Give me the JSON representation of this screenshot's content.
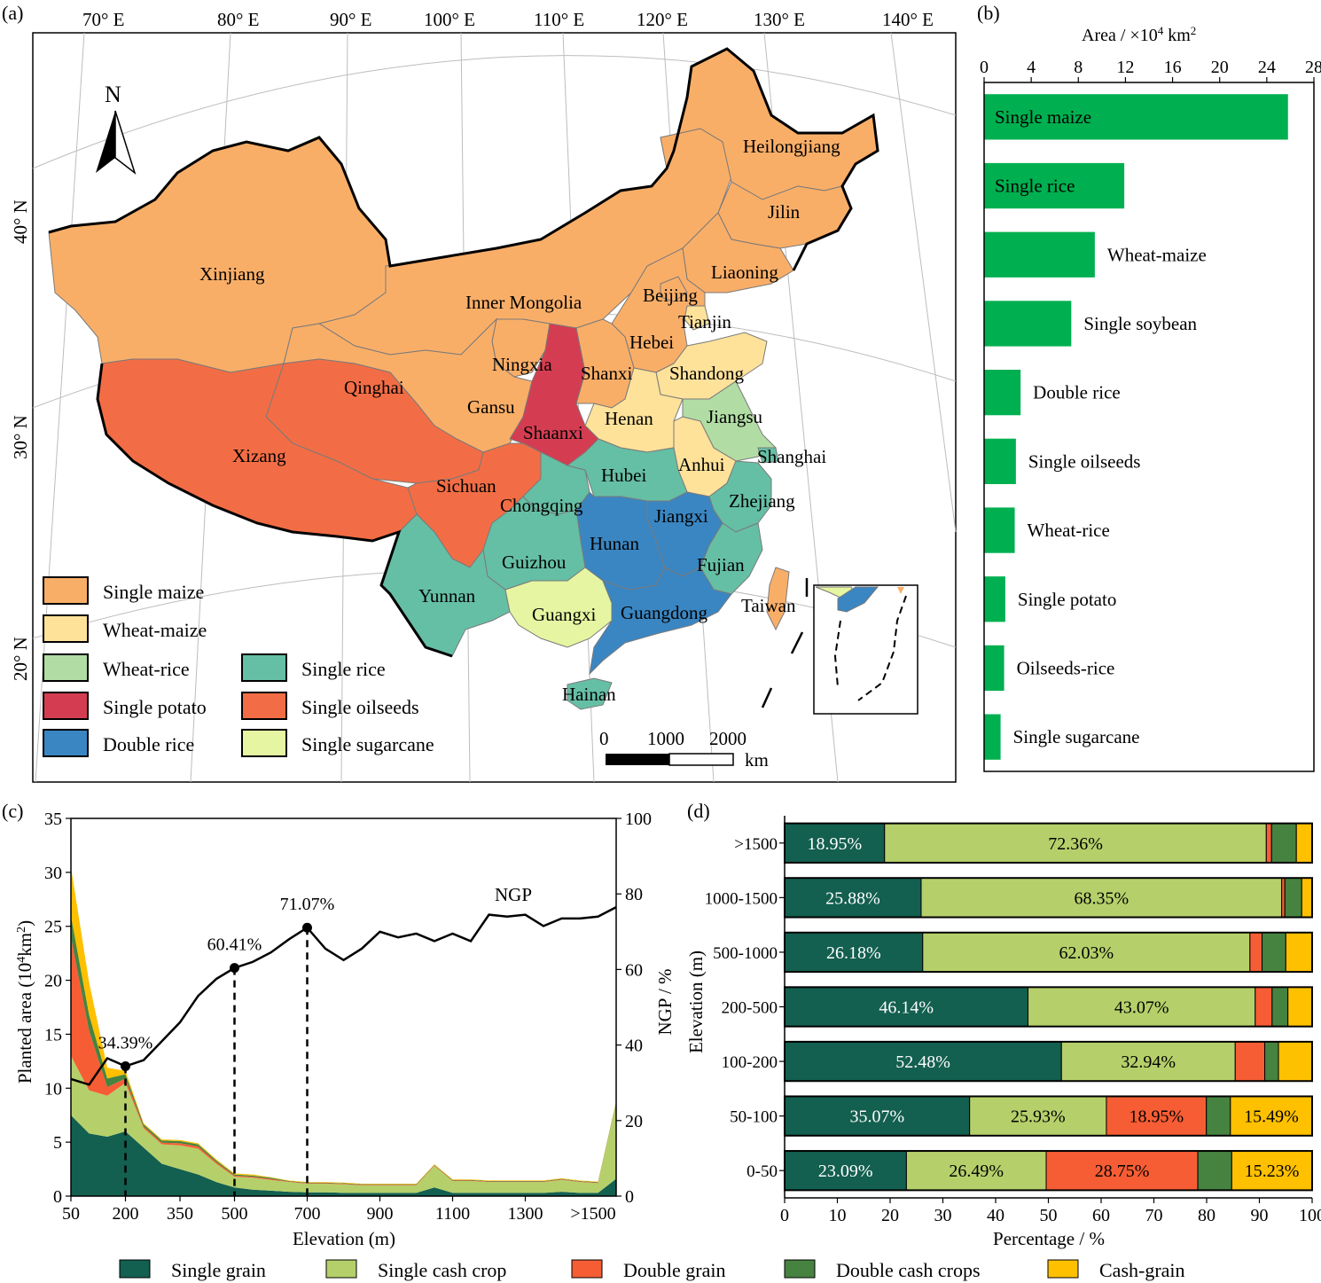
{
  "panel_labels": {
    "a": "(a)",
    "b": "(b)",
    "c": "(c)",
    "d": "(d)"
  },
  "map": {
    "north_label": "N",
    "lon_labels": [
      "70° E",
      "80° E",
      "90° E",
      "100° E",
      "110° E",
      "120° E",
      "130° E",
      "140° E"
    ],
    "lat_labels": [
      "40° N",
      "30° N",
      "20° N"
    ],
    "scale_labels": [
      "0",
      "1000",
      "2000"
    ],
    "scale_unit": "km",
    "provinces": [
      {
        "name": "Heilongjiang",
        "type": "single_maize"
      },
      {
        "name": "Jilin",
        "type": "single_maize"
      },
      {
        "name": "Liaoning",
        "type": "single_maize"
      },
      {
        "name": "Inner Mongolia",
        "type": "single_maize"
      },
      {
        "name": "Xinjiang",
        "type": "single_maize"
      },
      {
        "name": "Beijing",
        "type": "single_maize"
      },
      {
        "name": "Tianjin",
        "type": "wheat_maize"
      },
      {
        "name": "Hebei",
        "type": "single_maize"
      },
      {
        "name": "Shanxi",
        "type": "single_maize"
      },
      {
        "name": "Ningxia",
        "type": "single_maize"
      },
      {
        "name": "Gansu",
        "type": "single_maize"
      },
      {
        "name": "Shandong",
        "type": "wheat_maize"
      },
      {
        "name": "Henan",
        "type": "wheat_maize"
      },
      {
        "name": "Anhui",
        "type": "wheat_maize"
      },
      {
        "name": "Jiangsu",
        "type": "wheat_rice"
      },
      {
        "name": "Shanghai",
        "type": "single_rice"
      },
      {
        "name": "Qinghai",
        "type": "single_oilseeds"
      },
      {
        "name": "Xizang",
        "type": "single_oilseeds"
      },
      {
        "name": "Sichuan",
        "type": "single_oilseeds"
      },
      {
        "name": "Shaanxi",
        "type": "single_potato"
      },
      {
        "name": "Hubei",
        "type": "single_rice"
      },
      {
        "name": "Chongqing",
        "type": "single_rice"
      },
      {
        "name": "Zhejiang",
        "type": "single_rice"
      },
      {
        "name": "Hunan",
        "type": "double_rice"
      },
      {
        "name": "Jiangxi",
        "type": "double_rice"
      },
      {
        "name": "Guizhou",
        "type": "single_rice"
      },
      {
        "name": "Fujian",
        "type": "single_rice"
      },
      {
        "name": "Yunnan",
        "type": "single_rice"
      },
      {
        "name": "Guangxi",
        "type": "single_sugarcane"
      },
      {
        "name": "Guangdong",
        "type": "double_rice"
      },
      {
        "name": "Taiwan",
        "type": "single_maize"
      },
      {
        "name": "Hainan",
        "type": "single_rice"
      }
    ],
    "legend": [
      {
        "label": "Single maize",
        "color": "#F9AE68",
        "type": "single_maize"
      },
      {
        "label": "Wheat-maize",
        "color": "#FEE29A",
        "type": "wheat_maize"
      },
      {
        "label": "Wheat-rice",
        "color": "#B1DDA4",
        "type": "wheat_rice"
      },
      {
        "label": "Single potato",
        "color": "#D43D51",
        "type": "single_potato"
      },
      {
        "label": "Double rice",
        "color": "#3A86C2",
        "type": "double_rice"
      },
      {
        "label": "Single rice",
        "color": "#65BFA4",
        "type": "single_rice"
      },
      {
        "label": "Single oilseeds",
        "color": "#F26D45",
        "type": "single_oilseeds"
      },
      {
        "label": "Single sugarcane",
        "color": "#E6F5A1",
        "type": "single_sugarcane"
      }
    ]
  },
  "chart_data": [
    {
      "panel": "b",
      "type": "bar",
      "orientation": "horizontal",
      "xlabel_prefix": "Area / ×10",
      "xlabel_sup": "4",
      "xlabel_suffix": " km",
      "xlabel_sup2": "2",
      "xlim": [
        0,
        28
      ],
      "xticks": [
        0,
        4,
        8,
        12,
        16,
        20,
        24,
        28
      ],
      "color": "#00B050",
      "categories": [
        "Single maize",
        "Single rice",
        "Wheat-maize",
        "Single soybean",
        "Double rice",
        "Single oilseeds",
        "Wheat-rice",
        "Single potato",
        "Oilseeds-rice",
        "Single sugarcane"
      ],
      "values": [
        25.8,
        11.9,
        9.4,
        7.4,
        3.1,
        2.7,
        2.6,
        1.8,
        1.7,
        1.4
      ]
    },
    {
      "panel": "c",
      "type": "area",
      "stacked": true,
      "xlabel": "Elevation (m)",
      "ylabel_prefix": "Planted area (10",
      "ylabel_sup": "4",
      "ylabel_mid": "km",
      "ylabel_sup2": "2",
      "ylabel_suffix": ")",
      "ylim": [
        0,
        35
      ],
      "yticks": [
        0,
        5,
        10,
        15,
        20,
        25,
        30,
        35
      ],
      "xlim": [
        50,
        1550
      ],
      "xticks": [
        50,
        200,
        350,
        500,
        700,
        900,
        1100,
        1300
      ],
      "xtick_labels": [
        "50",
        "200",
        "350",
        "500",
        "700",
        "900",
        "1100",
        "1300",
        ">1500"
      ],
      "x": [
        50,
        100,
        150,
        200,
        250,
        300,
        350,
        400,
        450,
        500,
        550,
        600,
        650,
        700,
        750,
        800,
        850,
        900,
        950,
        1000,
        1050,
        1100,
        1150,
        1200,
        1250,
        1300,
        1350,
        1400,
        1450,
        1500,
        1550
      ],
      "series": [
        {
          "name": "Single grain",
          "color": "#135F50",
          "values": [
            7.5,
            5.8,
            5.5,
            6.0,
            4.5,
            3.0,
            2.5,
            2.0,
            1.3,
            0.8,
            0.6,
            0.5,
            0.4,
            0.35,
            0.35,
            0.3,
            0.3,
            0.3,
            0.3,
            0.3,
            0.8,
            0.3,
            0.3,
            0.3,
            0.3,
            0.3,
            0.3,
            0.4,
            0.3,
            0.3,
            1.6
          ]
        },
        {
          "name": "Single cash crop",
          "color": "#B5D06A",
          "values": [
            5.5,
            4.0,
            3.8,
            4.5,
            1.8,
            1.8,
            2.2,
            2.4,
            1.7,
            1.0,
            1.1,
            1.0,
            0.9,
            0.8,
            0.8,
            0.8,
            0.7,
            0.7,
            0.7,
            0.7,
            2.0,
            1.1,
            1.1,
            1.0,
            1.0,
            1.0,
            1.0,
            1.1,
            1.0,
            0.9,
            7.0
          ]
        },
        {
          "name": "Double grain",
          "color": "#F65D34",
          "values": [
            11.0,
            5.5,
            0.8,
            0.4,
            0.15,
            0.15,
            0.2,
            0.2,
            0.15,
            0.1,
            0.1,
            0.1,
            0.05,
            0.05,
            0.05,
            0.05,
            0.05,
            0.05,
            0.05,
            0.05,
            0.05,
            0.05,
            0.05,
            0.05,
            0.05,
            0.05,
            0.05,
            0.05,
            0.05,
            0.05,
            0.05
          ]
        },
        {
          "name": "Double cash crops",
          "color": "#468340",
          "values": [
            2.0,
            1.5,
            0.8,
            0.4,
            0.2,
            0.2,
            0.2,
            0.2,
            0.15,
            0.1,
            0.1,
            0.1,
            0.05,
            0.05,
            0.05,
            0.05,
            0.05,
            0.05,
            0.05,
            0.05,
            0.05,
            0.05,
            0.05,
            0.05,
            0.05,
            0.05,
            0.05,
            0.05,
            0.05,
            0.05,
            0.1
          ]
        },
        {
          "name": "Cash-grain",
          "color": "#FFC000",
          "values": [
            4.5,
            3.0,
            1.0,
            0.3,
            0.1,
            0.1,
            0.1,
            0.1,
            0.1,
            0.1,
            0.1,
            0.05,
            0.05,
            0.05,
            0.05,
            0.05,
            0.05,
            0.05,
            0.05,
            0.05,
            0.05,
            0.05,
            0.05,
            0.05,
            0.05,
            0.05,
            0.05,
            0.05,
            0.05,
            0.05,
            0.05
          ]
        }
      ],
      "ngp": {
        "name": "NGP",
        "axis_label": "NGP / %",
        "ylim": [
          0,
          100
        ],
        "yticks": [
          0,
          20,
          40,
          60,
          80,
          100
        ],
        "values": [
          31.0,
          29.5,
          36.5,
          34.39,
          36.0,
          41.0,
          46.0,
          53.0,
          57.5,
          60.41,
          62.0,
          64.5,
          68.0,
          71.07,
          65.5,
          62.5,
          65.5,
          70.0,
          68.5,
          69.5,
          67.5,
          69.5,
          67.5,
          74.5,
          74.0,
          74.5,
          71.5,
          73.5,
          73.5,
          74.0,
          76.5
        ],
        "markers": [
          {
            "x": 200,
            "value": 34.39,
            "label": "34.39%"
          },
          {
            "x": 500,
            "value": 60.41,
            "label": "60.41%"
          },
          {
            "x": 700,
            "value": 71.07,
            "label": "71.07%"
          }
        ]
      }
    },
    {
      "panel": "d",
      "type": "bar",
      "orientation": "horizontal",
      "stacked": true,
      "xlabel": "Percentage / %",
      "ylabel": "Elevation (m)",
      "xlim": [
        0,
        100
      ],
      "xticks": [
        0,
        10,
        20,
        30,
        40,
        50,
        60,
        70,
        80,
        90,
        100
      ],
      "categories": [
        ">1500",
        "1000-1500",
        "500-1000",
        "200-500",
        "100-200",
        "50-100",
        "0-50"
      ],
      "series": [
        {
          "name": "Single grain",
          "color": "#135F50",
          "values": [
            18.95,
            25.88,
            26.18,
            46.14,
            52.48,
            35.07,
            23.09
          ]
        },
        {
          "name": "Single cash crop",
          "color": "#B5D06A",
          "values": [
            72.36,
            68.35,
            62.03,
            43.07,
            32.94,
            25.93,
            26.49
          ]
        },
        {
          "name": "Double grain",
          "color": "#F65D34",
          "values": [
            1.0,
            0.6,
            2.3,
            3.2,
            5.6,
            18.95,
            28.75
          ]
        },
        {
          "name": "Double cash crops",
          "color": "#468340",
          "values": [
            4.7,
            3.2,
            4.5,
            3.0,
            2.6,
            4.56,
            6.43
          ]
        },
        {
          "name": "Cash-grain",
          "color": "#FFC000",
          "values": [
            2.99,
            1.97,
            4.99,
            4.59,
            6.38,
            15.49,
            15.23
          ]
        }
      ],
      "labels": [
        [
          {
            "series": 0,
            "text": "18.95%"
          },
          {
            "series": 1,
            "text": "72.36%"
          }
        ],
        [
          {
            "series": 0,
            "text": "25.88%"
          },
          {
            "series": 1,
            "text": "68.35%"
          }
        ],
        [
          {
            "series": 0,
            "text": "26.18%"
          },
          {
            "series": 1,
            "text": "62.03%"
          }
        ],
        [
          {
            "series": 0,
            "text": "46.14%"
          },
          {
            "series": 1,
            "text": "43.07%"
          }
        ],
        [
          {
            "series": 0,
            "text": "52.48%"
          },
          {
            "series": 1,
            "text": "32.94%"
          }
        ],
        [
          {
            "series": 0,
            "text": "35.07%"
          },
          {
            "series": 1,
            "text": "25.93%"
          },
          {
            "series": 2,
            "text": "18.95%"
          },
          {
            "series": 4,
            "text": "15.49%"
          }
        ],
        [
          {
            "series": 0,
            "text": "23.09%"
          },
          {
            "series": 1,
            "text": "26.49%"
          },
          {
            "series": 2,
            "text": "28.75%"
          },
          {
            "series": 4,
            "text": "15.23%"
          }
        ]
      ]
    }
  ],
  "bottom_legend": [
    {
      "label": "Single grain",
      "color": "#135F50"
    },
    {
      "label": "Single cash crop",
      "color": "#B5D06A"
    },
    {
      "label": "Double grain",
      "color": "#F65D34"
    },
    {
      "label": "Double cash crops",
      "color": "#468340"
    },
    {
      "label": "Cash-grain",
      "color": "#FFC000"
    }
  ]
}
